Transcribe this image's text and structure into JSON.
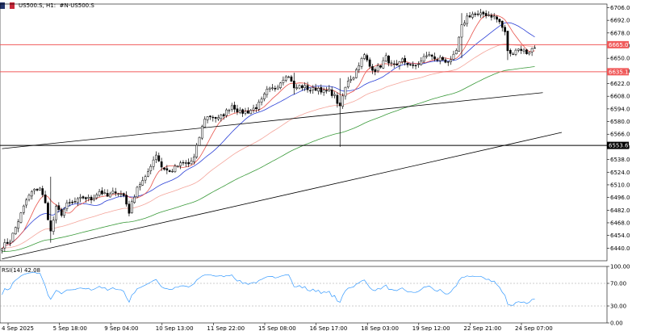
{
  "header": {
    "symbol": "US500.S, H1:",
    "description": "#N-US500.S"
  },
  "rsi_label": "RSI(14) 42.08",
  "colors": {
    "fast_ma": "#e8524a",
    "mid_ma": "#2a3fd6",
    "slow_ma": "#f4a49a",
    "long_ma": "#3a9a3a",
    "level_line": "#f05a5a",
    "rsi_line": "#3399ff",
    "support_line": "#000000"
  },
  "chart_data": {
    "type": "candlestick",
    "price_axis": {
      "ylim": [
        6426,
        6710
      ],
      "ticks": [
        6440,
        6454,
        6468,
        6482,
        6496,
        6510,
        6524,
        6538,
        6552,
        6566,
        6580,
        6594,
        6608,
        6622,
        6636,
        6650,
        6664,
        6678,
        6692,
        6706
      ],
      "tick_labels": [
        "6440.0",
        "6454.0",
        "6468.0",
        "6482.0",
        "6496.0",
        "6510.0",
        "6524.0",
        "6538.0",
        "6552.0",
        "6566.0",
        "6580.0",
        "6594.0",
        "6608.0",
        "6622.0",
        "6636.0",
        "6650.0",
        "6664.0",
        "6678.0",
        "6692.0",
        "6706.0"
      ]
    },
    "time_axis": {
      "labels": [
        "4 Sep 2025",
        "5 Sep 18:00",
        "9 Sep 04:00",
        "10 Sep 13:00",
        "11 Sep 22:00",
        "15 Sep 08:00",
        "16 Sep 17:00",
        "18 Sep 03:00",
        "19 Sep 12:00",
        "22 Sep 21:00",
        "24 Sep 07:00"
      ]
    },
    "levels": [
      {
        "label": "6665.0",
        "value": 6665.0,
        "color": "red"
      },
      {
        "label": "6635.1",
        "value": 6635.1,
        "color": "red"
      },
      {
        "label": "6553.6",
        "value": 6553.6,
        "color": "black"
      }
    ],
    "trendlines": [
      {
        "from": {
          "index": 0,
          "price": 6550
        },
        "to": {
          "index": 200,
          "price": 6612
        }
      },
      {
        "from": {
          "index": 0,
          "price": 6428
        },
        "to": {
          "index": 207,
          "price": 6568
        }
      }
    ],
    "close_anchors": [
      [
        0,
        6442
      ],
      [
        3,
        6448
      ],
      [
        6,
        6470
      ],
      [
        9,
        6493
      ],
      [
        11,
        6502
      ],
      [
        14,
        6507
      ],
      [
        16,
        6489
      ],
      [
        18,
        6458
      ],
      [
        20,
        6484
      ],
      [
        22,
        6478
      ],
      [
        24,
        6488
      ],
      [
        27,
        6491
      ],
      [
        30,
        6496
      ],
      [
        33,
        6494
      ],
      [
        36,
        6503
      ],
      [
        39,
        6497
      ],
      [
        42,
        6503
      ],
      [
        45,
        6498
      ],
      [
        47,
        6480
      ],
      [
        50,
        6508
      ],
      [
        53,
        6517
      ],
      [
        55,
        6532
      ],
      [
        57,
        6544
      ],
      [
        59,
        6530
      ],
      [
        62,
        6524
      ],
      [
        65,
        6531
      ],
      [
        67,
        6534
      ],
      [
        69,
        6533
      ],
      [
        71,
        6540
      ],
      [
        73,
        6563
      ],
      [
        75,
        6584
      ],
      [
        77,
        6586
      ],
      [
        80,
        6583
      ],
      [
        82,
        6588
      ],
      [
        85,
        6598
      ],
      [
        88,
        6590
      ],
      [
        91,
        6591
      ],
      [
        94,
        6596
      ],
      [
        96,
        6603
      ],
      [
        98,
        6614
      ],
      [
        101,
        6617
      ],
      [
        103,
        6624
      ],
      [
        105,
        6632
      ],
      [
        107,
        6626
      ],
      [
        108,
        6616
      ],
      [
        110,
        6619
      ],
      [
        112,
        6618
      ],
      [
        114,
        6615
      ],
      [
        117,
        6617
      ],
      [
        119,
        6613
      ],
      [
        121,
        6614
      ],
      [
        123,
        6608
      ],
      [
        125,
        6595
      ],
      [
        126,
        6608
      ],
      [
        128,
        6626
      ],
      [
        130,
        6630
      ],
      [
        132,
        6644
      ],
      [
        134,
        6653
      ],
      [
        136,
        6641
      ],
      [
        138,
        6637
      ],
      [
        140,
        6642
      ],
      [
        142,
        6651
      ],
      [
        144,
        6643
      ],
      [
        146,
        6640
      ],
      [
        148,
        6648
      ],
      [
        150,
        6644
      ],
      [
        152,
        6640
      ],
      [
        154,
        6645
      ],
      [
        156,
        6650
      ],
      [
        158,
        6655
      ],
      [
        160,
        6648
      ],
      [
        162,
        6650
      ],
      [
        164,
        6647
      ],
      [
        166,
        6646
      ],
      [
        168,
        6658
      ],
      [
        170,
        6685
      ],
      [
        172,
        6696
      ],
      [
        174,
        6699
      ],
      [
        176,
        6697
      ],
      [
        178,
        6699
      ],
      [
        180,
        6698
      ],
      [
        182,
        6696
      ],
      [
        184,
        6690
      ],
      [
        186,
        6678
      ],
      [
        187,
        6659
      ],
      [
        188,
        6654
      ],
      [
        190,
        6660
      ],
      [
        192,
        6660
      ],
      [
        194,
        6656
      ],
      [
        196,
        6660
      ],
      [
        197,
        6662
      ]
    ],
    "spikes": [
      {
        "index": 18,
        "low": 6446,
        "high": 6519
      },
      {
        "index": 125,
        "low": 6552,
        "high": 6628
      },
      {
        "index": 108,
        "low": 6610,
        "high": 6634
      },
      {
        "index": 170,
        "low": 6650,
        "high": 6700
      },
      {
        "index": 187,
        "low": 6648,
        "high": 6676
      }
    ],
    "rsi": {
      "ylim": [
        0,
        100
      ],
      "ticks": [
        0,
        30,
        70,
        100
      ],
      "tick_labels": [
        "0.00",
        "30.00",
        "70.00",
        "100.00"
      ],
      "last": 42.08
    }
  }
}
